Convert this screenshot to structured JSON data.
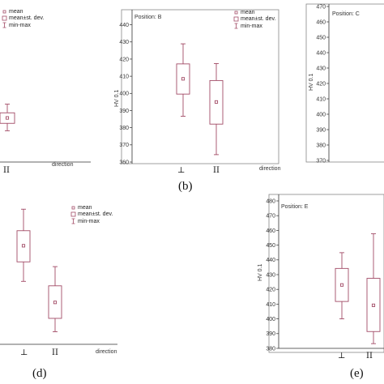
{
  "colors": {
    "box": "#a24b66",
    "axis": "#333333",
    "frame": "#888888"
  },
  "legend": {
    "mean": "mean",
    "sd": "mean±st. dev.",
    "minmax": "min-max"
  },
  "chart_data": [
    {
      "id": "a",
      "type": "boxplot",
      "title": "",
      "caption": "",
      "xlabel": "direction",
      "ylabel": "",
      "categories": [
        "⊥",
        "II"
      ],
      "series": [
        {
          "values": [
            null,
            {
              "min": 387.2,
              "q1": 392.0,
              "mean": 395.5,
              "q3": 398.8,
              "max": 404.4
            }
          ]
        }
      ]
    },
    {
      "id": "b",
      "type": "boxplot",
      "title": "Position: B",
      "caption": "(b)",
      "xlabel": "direction",
      "ylabel": "HV 0.1",
      "ylim": [
        360,
        445
      ],
      "yticks": [
        360,
        370,
        380,
        390,
        400,
        410,
        420,
        430,
        440
      ],
      "categories": [
        "⊥",
        "II"
      ],
      "series": [
        {
          "values": [
            {
              "min": 386.7,
              "q1": 399.6,
              "mean": 408.5,
              "q3": 417.2,
              "max": 428.9
            },
            {
              "min": 364.3,
              "q1": 382.1,
              "mean": 395.0,
              "q3": 407.5,
              "max": 417.4
            }
          ]
        }
      ]
    },
    {
      "id": "c",
      "type": "boxplot",
      "title": "Position: C",
      "caption": "",
      "xlabel": "",
      "ylabel": "HV 0.1",
      "ylim": [
        370,
        470
      ],
      "yticks": [
        370,
        380,
        390,
        400,
        410,
        420,
        430,
        440,
        450,
        460,
        470
      ],
      "categories": [],
      "series": []
    },
    {
      "id": "d",
      "type": "boxplot",
      "title": "",
      "caption": "(d)",
      "xlabel": "direction",
      "ylabel": "",
      "categories": [
        "⊥",
        "II"
      ],
      "series": [
        {
          "values": [
            {
              "min": 364.0,
              "q1": 376.7,
              "mean": 387.2,
              "q3": 397.0,
              "max": 411.0
            },
            {
              "min": 331.2,
              "q1": 339.9,
              "mean": 350.3,
              "q3": 361.1,
              "max": 373.6
            }
          ]
        }
      ]
    },
    {
      "id": "e",
      "type": "boxplot",
      "title": "Position: E",
      "caption": "(e)",
      "xlabel": "",
      "ylabel": "HV 0.1",
      "ylim": [
        380,
        480
      ],
      "yticks": [
        380,
        390,
        400,
        410,
        420,
        430,
        440,
        450,
        460,
        470,
        480
      ],
      "categories": [
        "⊥",
        "II"
      ],
      "series": [
        {
          "values": [
            {
              "min": 400.0,
              "q1": 411.8,
              "mean": 423.0,
              "q3": 434.2,
              "max": 444.9
            },
            {
              "min": 383.2,
              "q1": 391.4,
              "mean": 409.2,
              "q3": 427.5,
              "max": 457.7
            }
          ]
        }
      ]
    }
  ]
}
